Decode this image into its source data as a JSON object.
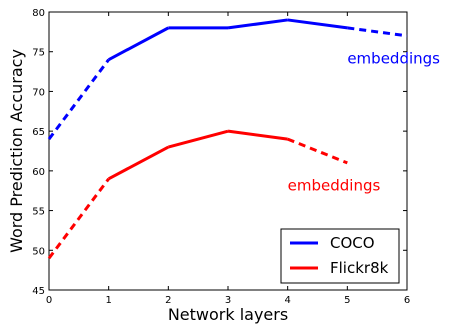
{
  "chart_data": {
    "type": "line",
    "xlabel": "Network layers",
    "ylabel": "Word Prediction Accuracy",
    "xlim": [
      0,
      6
    ],
    "ylim": [
      45,
      80
    ],
    "x_ticks": [
      0,
      1,
      2,
      3,
      4,
      5,
      6
    ],
    "y_ticks": [
      45,
      50,
      55,
      60,
      65,
      70,
      75,
      80
    ],
    "grid": false,
    "legend_position": "bottom-right",
    "series": [
      {
        "name": "COCO",
        "color": "#0000ff",
        "points": [
          [
            0,
            64
          ],
          [
            1,
            74
          ],
          [
            2,
            78
          ],
          [
            3,
            78
          ],
          [
            4,
            79
          ],
          [
            5,
            78
          ],
          [
            6,
            77
          ]
        ],
        "dashed_segments": [
          [
            0,
            1
          ],
          [
            5,
            6
          ]
        ]
      },
      {
        "name": "Flickr8k",
        "color": "#ff0000",
        "points": [
          [
            0,
            49
          ],
          [
            1,
            59
          ],
          [
            2,
            63
          ],
          [
            3,
            65
          ],
          [
            4,
            64
          ],
          [
            5,
            61
          ]
        ],
        "dashed_segments": [
          [
            0,
            1
          ],
          [
            4,
            5
          ]
        ]
      }
    ],
    "annotations": [
      {
        "text": "embeddings",
        "color": "#0000ff",
        "x": 5,
        "y": 73.5
      },
      {
        "text": "embeddings",
        "color": "#ff0000",
        "x": 4,
        "y": 57.5
      }
    ]
  }
}
